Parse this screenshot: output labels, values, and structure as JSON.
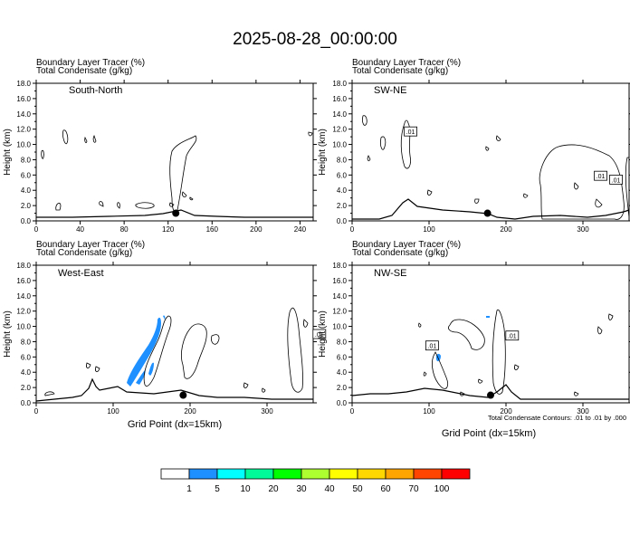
{
  "title": "2025-08-28_00:00:00",
  "panels": [
    {
      "id": "sn",
      "header1": "Boundary Layer Tracer   (%)",
      "header2": "Total Condensate   (g/kg)",
      "section_label": "South-North",
      "xticks": [
        "0",
        "40",
        "80",
        "120",
        "160",
        "200",
        "240"
      ],
      "xmax": 252,
      "xlabel": "",
      "ylabel": "Height (km)"
    },
    {
      "id": "swne",
      "header1": "Boundary Layer Tracer   (%)",
      "header2": "Total Condensate   (g/kg)",
      "section_label": "SW-NE",
      "xticks": [
        "0",
        "100",
        "200",
        "300"
      ],
      "xmax": 360,
      "xlabel": "",
      "ylabel": "Height (km)"
    },
    {
      "id": "we",
      "header1": "Boundary Layer Tracer   (%)",
      "header2": "Total Condensate   (g/kg)",
      "section_label": "West-East",
      "xticks": [
        "0",
        "100",
        "200",
        "300"
      ],
      "xmax": 360,
      "xlabel": "Grid Point (dx=15km)",
      "ylabel": "Height (km)"
    },
    {
      "id": "nwse",
      "header1": "Boundary Layer Tracer   (%)",
      "header2": "Total Condensate   (g/kg)",
      "section_label": "NW-SE",
      "xticks": [
        "0",
        "100",
        "200",
        "300"
      ],
      "xmax": 360,
      "xlabel": "Grid Point (dx=15km)",
      "ylabel": "Height (km)"
    }
  ],
  "yticks": [
    "0.0",
    "2.0",
    "4.0",
    "6.0",
    "8.0",
    "10.0",
    "12.0",
    "14.0",
    "16.0",
    "18.0"
  ],
  "contour_note": "Total Condensate Contours: .01 to .01 by .000",
  "colorbar": {
    "labels": [
      "1",
      "5",
      "10",
      "20",
      "30",
      "40",
      "50",
      "60",
      "70",
      "100"
    ],
    "colors": [
      "#ffffff",
      "#1e90ff",
      "#00ffff",
      "#00fa9a",
      "#00ff00",
      "#adff2f",
      "#ffff00",
      "#ffd700",
      "#ffa500",
      "#ff4500",
      "#ff0000"
    ]
  },
  "chart_data": [
    {
      "type": "heatmap",
      "title": "",
      "section": "South-North",
      "xlabel": "",
      "ylabel": "Height (km)",
      "xlim": [
        0,
        252
      ],
      "ylim": [
        0,
        18
      ],
      "marker": {
        "x": 127,
        "y": 1.0
      },
      "contour_labels": [],
      "tracer_shading": []
    },
    {
      "type": "heatmap",
      "title": "",
      "section": "SW-NE",
      "xlabel": "",
      "ylabel": "Height (km)",
      "xlim": [
        0,
        360
      ],
      "ylim": [
        0,
        18
      ],
      "marker": {
        "x": 176,
        "y": 1.0
      },
      "contour_labels": [
        {
          "x": 76,
          "y": 11.7,
          "text": ".01"
        },
        {
          "x": 323,
          "y": 5.9,
          "text": ".01"
        },
        {
          "x": 343,
          "y": 5.4,
          "text": ".01"
        }
      ],
      "tracer_shading": []
    },
    {
      "type": "heatmap",
      "title": "",
      "section": "West-East",
      "xlabel": "Grid Point (dx=15km)",
      "ylabel": "Height (km)",
      "xlim": [
        0,
        360
      ],
      "ylim": [
        0,
        18
      ],
      "marker": {
        "x": 191,
        "y": 1.0
      },
      "contour_labels": [
        {
          "x": 368,
          "y": 9.0,
          "text": ".01"
        }
      ],
      "tracer_shading": [
        {
          "class": "1-5",
          "x_range": [
            120,
            170
          ],
          "z_range": [
            2.0,
            9.5
          ]
        }
      ]
    },
    {
      "type": "heatmap",
      "title": "",
      "section": "NW-SE",
      "xlabel": "Grid Point (dx=15km)",
      "ylabel": "Height (km)",
      "xlim": [
        0,
        360
      ],
      "ylim": [
        0,
        18
      ],
      "marker": {
        "x": 180,
        "y": 1.0
      },
      "contour_labels": [
        {
          "x": 104,
          "y": 7.5,
          "text": ".01"
        },
        {
          "x": 208,
          "y": 8.8,
          "text": ".01"
        }
      ],
      "tracer_shading": [
        {
          "class": "1-5",
          "x_range": [
            105,
            111
          ],
          "z_range": [
            5.6,
            6.6
          ]
        }
      ]
    }
  ]
}
